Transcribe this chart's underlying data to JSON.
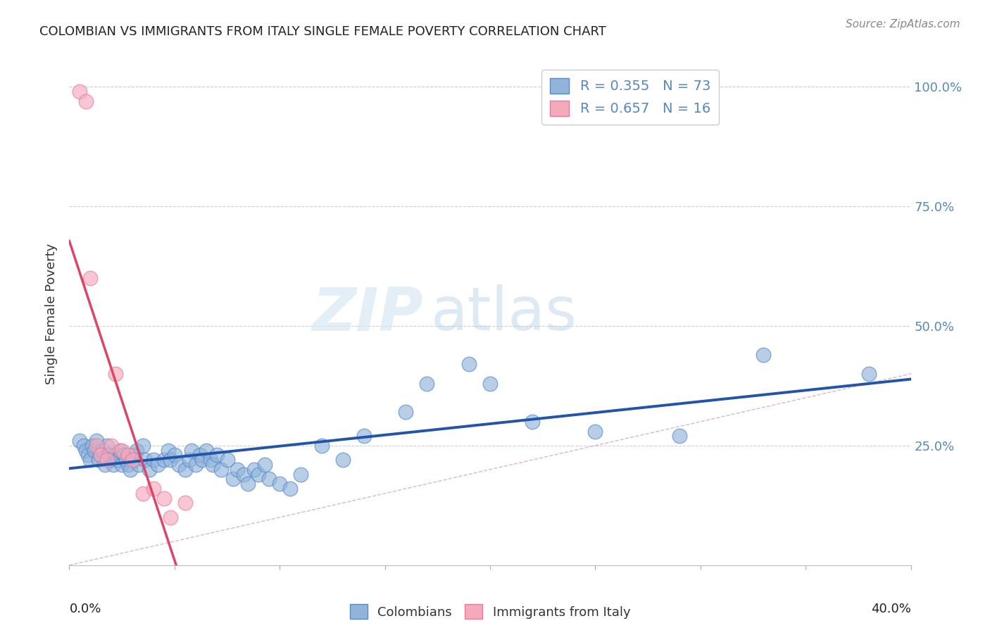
{
  "title": "COLOMBIAN VS IMMIGRANTS FROM ITALY SINGLE FEMALE POVERTY CORRELATION CHART",
  "source": "Source: ZipAtlas.com",
  "ylabel": "Single Female Poverty",
  "xlim": [
    0.0,
    0.4
  ],
  "ylim": [
    0.0,
    1.05
  ],
  "colombians_R": 0.355,
  "colombians_N": 73,
  "italy_R": 0.657,
  "italy_N": 16,
  "legend_label_1": "Colombians",
  "legend_label_2": "Immigrants from Italy",
  "watermark_zip": "ZIP",
  "watermark_atlas": "atlas",
  "blue_color": "#92B4D9",
  "blue_line_color": "#2255AA",
  "blue_edge_color": "#5588CC",
  "pink_color": "#F5AABC",
  "pink_line_color": "#DD4466",
  "pink_edge_color": "#EE7799",
  "dashed_line_color": "#DDAACC",
  "grid_color": "#CCCCDD",
  "right_axis_color": "#5588BB",
  "colombians_x": [
    0.005,
    0.007,
    0.008,
    0.009,
    0.01,
    0.011,
    0.012,
    0.013,
    0.014,
    0.015,
    0.016,
    0.017,
    0.018,
    0.019,
    0.02,
    0.021,
    0.022,
    0.023,
    0.024,
    0.025,
    0.026,
    0.027,
    0.028,
    0.029,
    0.03,
    0.031,
    0.032,
    0.033,
    0.035,
    0.036,
    0.038,
    0.04,
    0.042,
    0.045,
    0.047,
    0.048,
    0.05,
    0.052,
    0.055,
    0.057,
    0.058,
    0.06,
    0.062,
    0.063,
    0.065,
    0.067,
    0.068,
    0.07,
    0.072,
    0.075,
    0.078,
    0.08,
    0.083,
    0.085,
    0.088,
    0.09,
    0.093,
    0.095,
    0.1,
    0.105,
    0.11,
    0.12,
    0.13,
    0.14,
    0.16,
    0.17,
    0.19,
    0.2,
    0.22,
    0.25,
    0.29,
    0.33,
    0.38
  ],
  "colombians_y": [
    0.26,
    0.25,
    0.24,
    0.23,
    0.22,
    0.25,
    0.24,
    0.26,
    0.22,
    0.23,
    0.24,
    0.21,
    0.25,
    0.23,
    0.22,
    0.21,
    0.23,
    0.22,
    0.24,
    0.21,
    0.23,
    0.22,
    0.21,
    0.2,
    0.23,
    0.22,
    0.24,
    0.21,
    0.25,
    0.22,
    0.2,
    0.22,
    0.21,
    0.22,
    0.24,
    0.22,
    0.23,
    0.21,
    0.2,
    0.22,
    0.24,
    0.21,
    0.23,
    0.22,
    0.24,
    0.22,
    0.21,
    0.23,
    0.2,
    0.22,
    0.18,
    0.2,
    0.19,
    0.17,
    0.2,
    0.19,
    0.21,
    0.18,
    0.17,
    0.16,
    0.19,
    0.25,
    0.22,
    0.27,
    0.32,
    0.38,
    0.42,
    0.38,
    0.3,
    0.28,
    0.27,
    0.44,
    0.4
  ],
  "italy_x": [
    0.005,
    0.008,
    0.01,
    0.013,
    0.015,
    0.018,
    0.02,
    0.022,
    0.025,
    0.028,
    0.03,
    0.035,
    0.04,
    0.045,
    0.048,
    0.055
  ],
  "italy_y": [
    0.99,
    0.97,
    0.6,
    0.25,
    0.23,
    0.22,
    0.25,
    0.4,
    0.24,
    0.23,
    0.22,
    0.15,
    0.16,
    0.14,
    0.1,
    0.13
  ]
}
